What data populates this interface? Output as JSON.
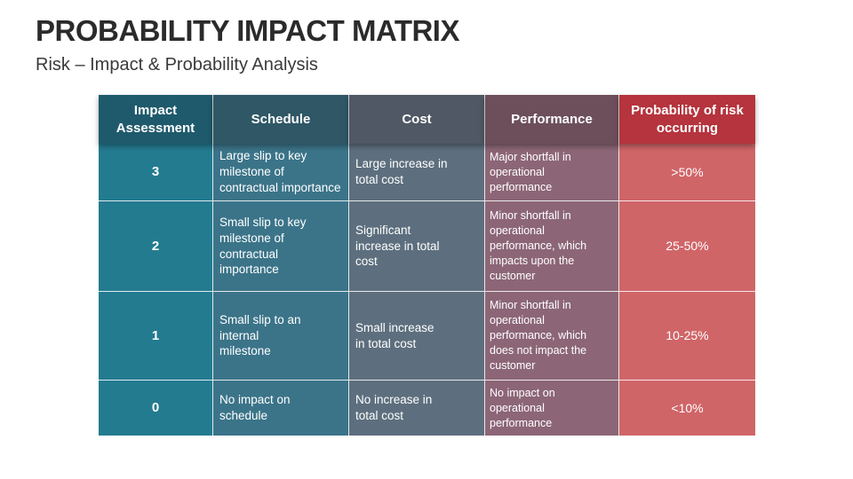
{
  "title": "PROBABILITY IMPACT MATRIX",
  "subtitle": "Risk – Impact & Probability Analysis",
  "table": {
    "headers": {
      "impact": "Impact\nAssessment",
      "schedule": "Schedule",
      "cost": "Cost",
      "performance": "Performance",
      "probability": "Probability of risk\noccurring"
    },
    "rows": [
      {
        "impact": "3",
        "schedule": "Large slip to key\nmilestone of\ncontractual importance",
        "cost": "Large increase in\ntotal cost",
        "performance": "Major shortfall in\noperational\nperformance",
        "probability": ">50%"
      },
      {
        "impact": "2",
        "schedule": "Small slip to key\nmilestone of\ncontractual\nimportance",
        "cost": "Significant\nincrease in total\ncost",
        "performance": "Minor shortfall in\noperational\nperformance, which\nimpacts upon the\ncustomer",
        "probability": "25-50%"
      },
      {
        "impact": "1",
        "schedule": "Small slip to an\ninternal\nmilestone",
        "cost": "Small increase\nin total cost",
        "performance": "Minor shortfall in\noperational\nperformance, which\ndoes not impact the\ncustomer",
        "probability": "10-25%"
      },
      {
        "impact": "0",
        "schedule": "No impact on\nschedule",
        "cost": "No increase in\ntotal cost",
        "performance": "No impact on\noperational\nperformance",
        "probability": "<10%"
      }
    ]
  }
}
